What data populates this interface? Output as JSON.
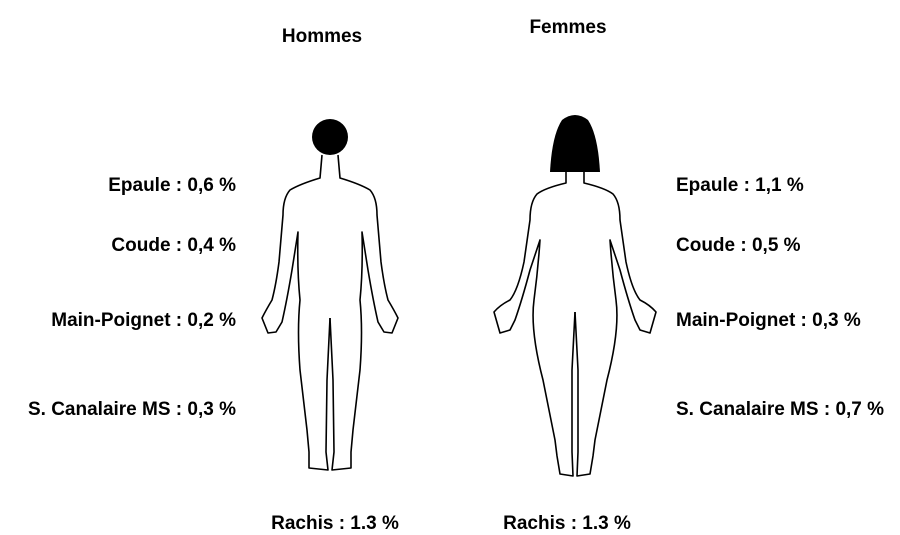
{
  "columns": [
    {
      "title": "Hommes",
      "labels": [
        "Epaule : 0,6 %",
        "Coude : 0,4 %",
        "Main-Poignet : 0,2 %",
        "S. Canalaire MS : 0,3 %"
      ],
      "footer": "Rachis : 1.3 %"
    },
    {
      "title": "Femmes",
      "labels": [
        "Epaule : 1,1 %",
        "Coude : 0,5 %",
        "Main-Poignet : 0,3 %",
        "S. Canalaire MS : 0,7 %"
      ],
      "footer": "Rachis : 1.3 %"
    }
  ]
}
